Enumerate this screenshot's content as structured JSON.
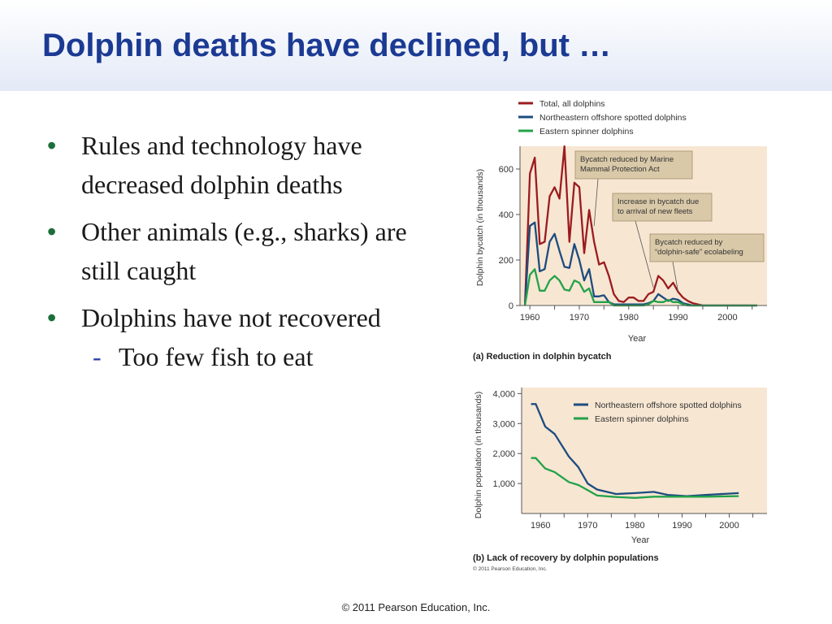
{
  "slide": {
    "title": "Dolphin deaths have declined, but …",
    "bullets": [
      "Rules and technology have decreased dolphin deaths",
      "Other animals (e.g., sharks) are still caught",
      "Dolphins have not recovered"
    ],
    "sub_bullet": "Too few fish to eat",
    "sub_marker": "-",
    "bullet_marker": "•",
    "footer": "© 2011 Pearson Education, Inc.",
    "figure_copyright": "© 2011 Pearson Education, Inc."
  },
  "colors": {
    "total": "#9b1b1f",
    "spotted": "#1c4c7f",
    "spinner": "#22a24a",
    "plot_bg": "#f7e6d2",
    "title": "#1b3a93"
  },
  "chart_data": [
    {
      "type": "line",
      "caption": "(a) Reduction in dolphin bycatch",
      "xlabel": "Year",
      "ylabel": "Dolphin bycatch (in thousands)",
      "xlim": [
        1958,
        2008
      ],
      "ylim": [
        0,
        700
      ],
      "xticks": [
        "1960",
        "1970",
        "1980",
        "1990",
        "2000"
      ],
      "yticks": [
        "0",
        "200",
        "400",
        "600"
      ],
      "legend_position": "top",
      "annotations": [
        {
          "text": [
            "Bycatch reduced by Marine",
            "Mammal Protection Act"
          ],
          "target_x": 1973,
          "target_y": 350
        },
        {
          "text": [
            "Increase in bycatch due",
            "to arrival of new fleets"
          ],
          "target_x": 1985,
          "target_y": 80
        },
        {
          "text": [
            "Bycatch reduced by",
            "“dolphin-safe” ecolabeling"
          ],
          "target_x": 1990,
          "target_y": 60
        }
      ],
      "series": [
        {
          "name": "Total, all dolphins",
          "x": [
            1959,
            1960,
            1961,
            1962,
            1963,
            1964,
            1965,
            1966,
            1967,
            1968,
            1969,
            1970,
            1971,
            1972,
            1973,
            1974,
            1975,
            1976,
            1977,
            1978,
            1979,
            1980,
            1981,
            1982,
            1983,
            1984,
            1985,
            1986,
            1987,
            1988,
            1989,
            1990,
            1991,
            1992,
            1993,
            1995,
            2000,
            2006
          ],
          "y": [
            0,
            580,
            650,
            270,
            280,
            480,
            520,
            470,
            700,
            280,
            540,
            520,
            230,
            420,
            280,
            180,
            190,
            130,
            50,
            20,
            15,
            35,
            35,
            20,
            20,
            50,
            60,
            130,
            110,
            75,
            100,
            60,
            35,
            20,
            10,
            0,
            0,
            0
          ]
        },
        {
          "name": "Northeastern offshore spotted dolphins",
          "x": [
            1959,
            1960,
            1961,
            1962,
            1963,
            1964,
            1965,
            1966,
            1967,
            1968,
            1969,
            1970,
            1971,
            1972,
            1973,
            1974,
            1975,
            1976,
            1977,
            1978,
            1979,
            1980,
            1981,
            1982,
            1983,
            1984,
            1985,
            1986,
            1987,
            1988,
            1989,
            1990,
            1991,
            1992,
            1993,
            2000,
            2006
          ],
          "y": [
            0,
            350,
            365,
            150,
            160,
            280,
            315,
            240,
            170,
            165,
            270,
            200,
            110,
            160,
            40,
            40,
            45,
            15,
            5,
            5,
            5,
            5,
            5,
            5,
            5,
            10,
            20,
            50,
            35,
            20,
            30,
            25,
            10,
            5,
            0,
            0,
            0
          ]
        },
        {
          "name": "Eastern spinner dolphins",
          "x": [
            1959,
            1960,
            1961,
            1962,
            1963,
            1964,
            1965,
            1966,
            1967,
            1968,
            1969,
            1970,
            1971,
            1972,
            1973,
            1974,
            1975,
            1976,
            1977,
            1978,
            1980,
            1983,
            1984,
            1985,
            1986,
            1987,
            1988,
            1989,
            1990,
            1991,
            1992,
            2000,
            2006
          ],
          "y": [
            0,
            135,
            160,
            65,
            65,
            110,
            130,
            110,
            70,
            65,
            110,
            100,
            60,
            75,
            15,
            15,
            15,
            15,
            0,
            0,
            0,
            0,
            5,
            20,
            15,
            15,
            25,
            15,
            15,
            5,
            0,
            0,
            0
          ]
        }
      ]
    },
    {
      "type": "line",
      "caption": "(b) Lack of recovery by dolphin populations",
      "xlabel": "Year",
      "ylabel": "Dolphin population (in thousands)",
      "xlim": [
        1956,
        2008
      ],
      "ylim": [
        0,
        4200
      ],
      "xticks": [
        "1960",
        "1970",
        "1980",
        "1990",
        "2000"
      ],
      "yticks": [
        "1,000",
        "2,000",
        "3,000",
        "4,000"
      ],
      "legend_position": "top-right",
      "series": [
        {
          "name": "Northeastern offshore spotted dolphins",
          "x": [
            1958,
            1959,
            1961,
            1963,
            1966,
            1968,
            1970,
            1972,
            1976,
            1980,
            1984,
            1987,
            1991,
            1995,
            2002
          ],
          "y": [
            3650,
            3650,
            2900,
            2650,
            1900,
            1550,
            1000,
            800,
            650,
            680,
            720,
            620,
            580,
            620,
            680
          ]
        },
        {
          "name": "Eastern spinner dolphins",
          "x": [
            1958,
            1959,
            1961,
            1963,
            1966,
            1968,
            1970,
            1972,
            1976,
            1980,
            1984,
            1987,
            1991,
            1995,
            2002
          ],
          "y": [
            1850,
            1850,
            1500,
            1380,
            1050,
            950,
            780,
            600,
            550,
            520,
            560,
            560,
            560,
            560,
            580
          ]
        }
      ]
    }
  ]
}
